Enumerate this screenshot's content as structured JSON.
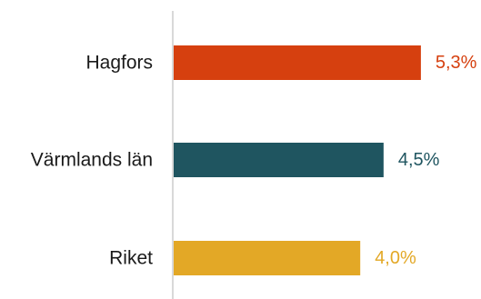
{
  "chart_data": {
    "type": "bar",
    "orientation": "horizontal",
    "categories": [
      "Hagfors",
      "Värmlands län",
      "Riket"
    ],
    "values": [
      5.3,
      4.5,
      4.0
    ],
    "value_labels": [
      "5,3%",
      "4,5%",
      "4,0%"
    ],
    "colors": [
      "#d6400f",
      "#1f5560",
      "#e3a826"
    ],
    "title": "",
    "xlabel": "",
    "ylabel": "",
    "xlim": [
      0,
      6.5
    ],
    "grid": false,
    "legend": "none"
  }
}
